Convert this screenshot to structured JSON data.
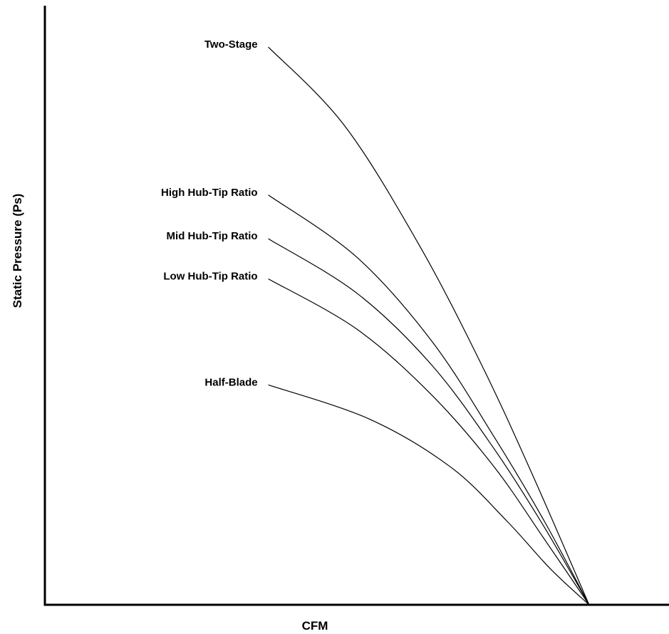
{
  "chart_data": {
    "type": "line",
    "title": "",
    "xlabel": "CFM",
    "ylabel": "Static Pressure (Ps)",
    "xlim": [
      0,
      1
    ],
    "ylim": [
      0,
      1
    ],
    "grid": false,
    "legend": "inline-left",
    "shutoff_x": 0.872,
    "series": [
      {
        "name": "Two-Stage",
        "x": [
          0.358,
          0.48,
          0.6,
          0.7,
          0.78,
          0.872
        ],
        "y": [
          0.931,
          0.8,
          0.6,
          0.4,
          0.22,
          0.0
        ]
      },
      {
        "name": "High Hub-Tip Ratio",
        "x": [
          0.358,
          0.5,
          0.62,
          0.72,
          0.8,
          0.872
        ],
        "y": [
          0.684,
          0.58,
          0.44,
          0.28,
          0.14,
          0.0
        ]
      },
      {
        "name": "Mid Hub-Tip Ratio",
        "x": [
          0.358,
          0.5,
          0.62,
          0.72,
          0.8,
          0.872
        ],
        "y": [
          0.611,
          0.52,
          0.4,
          0.26,
          0.13,
          0.0
        ]
      },
      {
        "name": "Low Hub-Tip Ratio",
        "x": [
          0.358,
          0.5,
          0.62,
          0.72,
          0.8,
          0.872
        ],
        "y": [
          0.544,
          0.46,
          0.35,
          0.23,
          0.11,
          0.0
        ]
      },
      {
        "name": "Half-Blade",
        "x": [
          0.358,
          0.52,
          0.65,
          0.74,
          0.81,
          0.872
        ],
        "y": [
          0.367,
          0.31,
          0.23,
          0.14,
          0.06,
          0.0
        ]
      }
    ]
  }
}
